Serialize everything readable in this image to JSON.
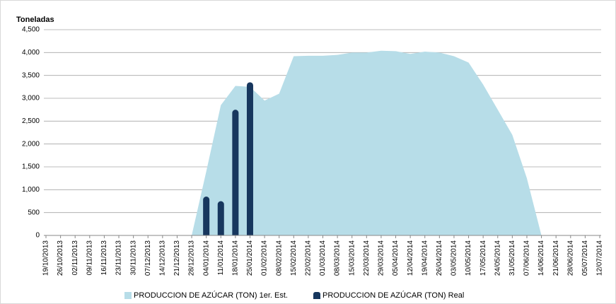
{
  "chart_data": {
    "type": "area_bar",
    "y_label": "Toneladas",
    "categories": [
      "19/10/2013",
      "26/10/2013",
      "02/11/2013",
      "09/11/2013",
      "16/11/2013",
      "23/11/2013",
      "30/11/2013",
      "07/12/2013",
      "14/12/2013",
      "21/12/2013",
      "28/12/2013",
      "04/01/2014",
      "11/01/2014",
      "18/01/2014",
      "25/01/2014",
      "01/02/2014",
      "08/02/2014",
      "15/02/2014",
      "22/02/2014",
      "01/03/2014",
      "08/03/2014",
      "15/03/2014",
      "22/03/2014",
      "29/03/2014",
      "05/04/2014",
      "12/04/2014",
      "19/04/2014",
      "26/04/2014",
      "03/05/2014",
      "10/05/2014",
      "17/05/2014",
      "24/05/2014",
      "31/05/2014",
      "07/06/2014",
      "14/06/2014",
      "21/06/2014",
      "28/06/2014",
      "05/07/2014",
      "12/07/2014"
    ],
    "series": [
      {
        "name": "PRODUCCION DE AZÚCAR (TON) 1er. Est.",
        "kind": "area",
        "color": "#b7dde8",
        "values": [
          null,
          null,
          null,
          null,
          null,
          null,
          null,
          null,
          null,
          null,
          0,
          1400,
          2850,
          3270,
          3250,
          2950,
          3100,
          3920,
          3930,
          3930,
          3950,
          4000,
          4000,
          4040,
          4030,
          3970,
          4020,
          4000,
          3920,
          3780,
          3300,
          2750,
          2200,
          1250,
          0,
          null,
          null,
          null,
          null
        ]
      },
      {
        "name": "PRODUCCION DE AZÚCAR (TON) Real",
        "kind": "bar",
        "color": "#17375e",
        "values": [
          null,
          null,
          null,
          null,
          null,
          null,
          null,
          null,
          null,
          null,
          null,
          850,
          750,
          2750,
          3350,
          null,
          null,
          null,
          null,
          null,
          null,
          null,
          null,
          null,
          null,
          null,
          null,
          null,
          null,
          null,
          null,
          null,
          null,
          null,
          null,
          null,
          null,
          null,
          null
        ]
      }
    ],
    "ylim": [
      0,
      4500
    ],
    "yticks": [
      0,
      500,
      {
        "value": 1000,
        "label": "1,000"
      },
      {
        "value": 1500,
        "label": "1,500"
      },
      {
        "value": 2000,
        "label": "2,000"
      },
      {
        "value": 2500,
        "label": "2,500"
      },
      {
        "value": 3000,
        "label": "3,000"
      },
      {
        "value": 3500,
        "label": "3,500"
      },
      {
        "value": 4000,
        "label": "4,000"
      },
      {
        "value": 4500,
        "label": "4,500"
      }
    ],
    "grid": true,
    "legend": "bottom"
  }
}
